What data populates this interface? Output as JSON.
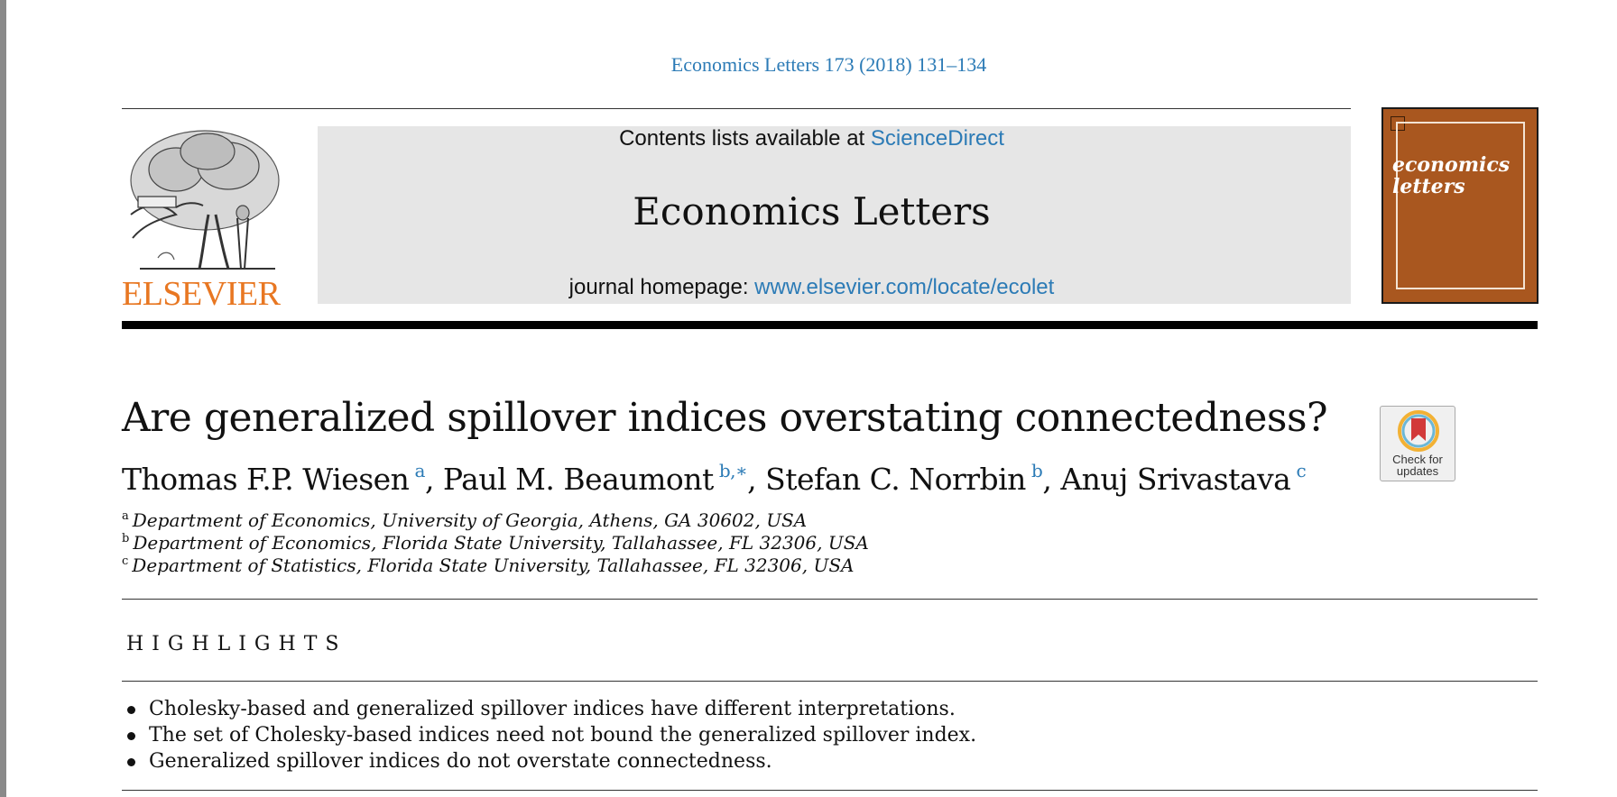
{
  "citation": "Economics Letters 173 (2018) 131–134",
  "publisher_logo": {
    "wordmark": "ELSEVIER",
    "icon": "elsevier-tree-icon"
  },
  "header": {
    "contents_prefix": "Contents lists available at ",
    "contents_link": "ScienceDirect",
    "journal_title": "Economics Letters",
    "homepage_prefix": "journal homepage: ",
    "homepage_link": "www.elsevier.com/locate/ecolet"
  },
  "cover": {
    "title_line1": "economics",
    "title_line2": "letters"
  },
  "article": {
    "title": "Are generalized spillover indices overstating connectedness?",
    "authors": [
      {
        "name": "Thomas F.P. Wiesen",
        "affil": "a"
      },
      {
        "name": "Paul M. Beaumont",
        "affil": "b,∗"
      },
      {
        "name": "Stefan C. Norrbin",
        "affil": "b"
      },
      {
        "name": "Anuj Srivastava",
        "affil": "c"
      }
    ],
    "affiliations": [
      {
        "mark": "a",
        "text": "Department of Economics, University of Georgia, Athens, GA 30602, USA"
      },
      {
        "mark": "b",
        "text": "Department of Economics, Florida State University, Tallahassee, FL 32306, USA"
      },
      {
        "mark": "c",
        "text": "Department of Statistics, Florida State University, Tallahassee, FL 32306, USA"
      }
    ]
  },
  "check_updates": {
    "label_line1": "Check for",
    "label_line2": "updates",
    "icon": "bookmark-badge-icon"
  },
  "highlights": {
    "heading": "HIGHLIGHTS",
    "items": [
      "Cholesky-based and generalized spillover indices have different interpretations.",
      "The set of Cholesky-based indices need not bound the generalized spillover index.",
      "Generalized spillover indices do not overstate connectedness."
    ]
  },
  "colors": {
    "link": "#2c7bb6",
    "elsevier_orange": "#e87722",
    "cover": "#a9571f",
    "header_box": "#e6e6e6"
  }
}
